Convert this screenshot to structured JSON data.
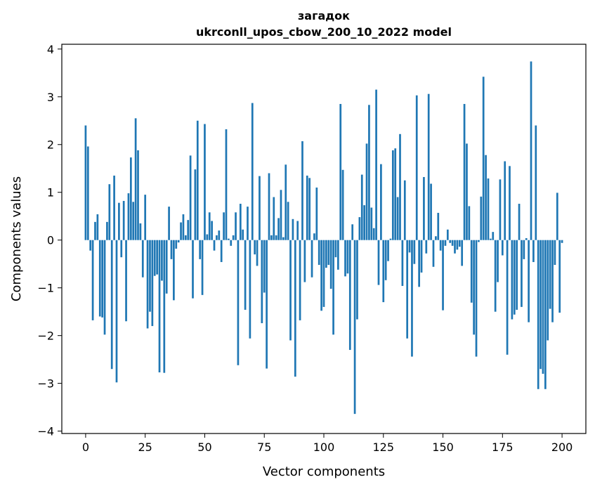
{
  "chart_data": {
    "type": "bar",
    "title": "загадок",
    "subtitle": "ukrconll_upos_cbow_200_10_2022 model",
    "xlabel": "Vector components",
    "ylabel": "Components values",
    "xlim": [
      -10,
      210
    ],
    "ylim": [
      -4.05,
      4.1
    ],
    "xticks": [
      0,
      25,
      50,
      75,
      100,
      125,
      150,
      175,
      200
    ],
    "yticks": [
      -4,
      -3,
      -2,
      -1,
      0,
      1,
      2,
      3,
      4
    ],
    "xtick_labels": [
      "0",
      "25",
      "50",
      "75",
      "100",
      "125",
      "150",
      "175",
      "200"
    ],
    "ytick_labels": [
      "−4",
      "−3",
      "−2",
      "−1",
      "0",
      "1",
      "2",
      "3",
      "4"
    ],
    "bar_color": "#1f77b4",
    "grid": false,
    "values": [
      2.4,
      1.96,
      -0.22,
      -1.68,
      0.38,
      0.54,
      -1.6,
      -1.62,
      -1.98,
      0.38,
      1.17,
      -2.7,
      1.35,
      -2.98,
      0.78,
      -0.36,
      0.82,
      -1.7,
      0.98,
      1.73,
      0.8,
      2.55,
      1.88,
      0.35,
      -0.78,
      0.95,
      -1.85,
      -1.5,
      -1.8,
      -0.75,
      -0.72,
      -2.77,
      -0.85,
      -2.78,
      -1.12,
      0.7,
      -0.4,
      -1.26,
      -0.18,
      -0.05,
      0.37,
      0.54,
      0.1,
      0.42,
      1.77,
      -1.22,
      1.48,
      2.5,
      -0.4,
      -1.15,
      2.43,
      0.12,
      0.58,
      0.4,
      -0.22,
      0.1,
      0.2,
      -0.46,
      0.58,
      2.32,
      0.03,
      -0.12,
      0.1,
      0.58,
      -2.62,
      0.76,
      0.22,
      -1.46,
      0.7,
      -2.06,
      2.87,
      -0.3,
      -0.54,
      1.34,
      -1.74,
      -1.1,
      -2.69,
      1.4,
      0.1,
      0.9,
      0.1,
      0.46,
      1.05,
      0.06,
      1.58,
      0.8,
      -2.1,
      0.44,
      -2.86,
      0.4,
      -1.68,
      2.07,
      -0.88,
      1.35,
      1.3,
      -0.78,
      0.14,
      1.1,
      -0.52,
      -1.48,
      -1.4,
      -0.58,
      -0.52,
      -1.02,
      -1.98,
      -0.36,
      -0.62,
      2.85,
      1.47,
      -0.76,
      -0.7,
      -2.3,
      0.33,
      -3.64,
      -1.66,
      0.48,
      1.37,
      0.73,
      2.02,
      2.83,
      0.68,
      0.25,
      3.15,
      -0.94,
      1.59,
      -1.3,
      -0.84,
      -0.44,
      0.03,
      1.88,
      1.92,
      0.9,
      2.22,
      -0.96,
      1.25,
      -2.06,
      -0.26,
      -2.44,
      -0.5,
      3.03,
      -0.98,
      -0.68,
      1.32,
      -0.28,
      3.06,
      1.18,
      -0.56,
      0.08,
      0.57,
      -0.22,
      -1.47,
      -0.12,
      0.22,
      -0.06,
      -0.12,
      -0.28,
      -0.2,
      -0.14,
      -0.54,
      2.85,
      2.02,
      0.71,
      -1.31,
      -1.98,
      -2.44,
      -0.04,
      0.91,
      3.42,
      1.78,
      1.29,
      0.03,
      0.17,
      -1.5,
      -0.88,
      1.27,
      -0.32,
      1.65,
      -2.4,
      1.55,
      -1.66,
      -1.56,
      -1.46,
      0.76,
      -1.4,
      -0.4,
      0.04,
      -1.72,
      3.74,
      -0.46,
      2.4,
      -3.12,
      -2.7,
      -2.8,
      -3.12,
      -2.1,
      -1.44,
      -1.72,
      -0.52,
      0.99,
      -1.52,
      -0.06
    ]
  }
}
